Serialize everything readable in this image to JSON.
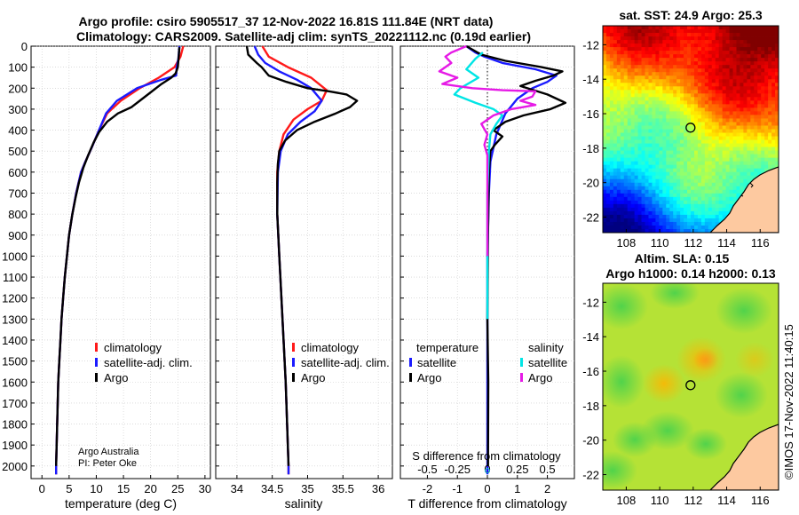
{
  "title": {
    "line1": "Argo profile: csiro 5905517_37 12-Nov-2022 16.81S 111.84E (NRT data)",
    "line2": "Climatology: CARS2009. Satellite-adj clim: synTS_20221112.nc (0.19d earlier)"
  },
  "credit": {
    "line1": "Argo Australia",
    "line2": "PI: Peter Oke"
  },
  "timestamp": "©IMOS 17-Nov-2022 11:40:15",
  "colors": {
    "clim": "#ff1a1a",
    "sat": "#1a1aff",
    "argo": "#000000",
    "satS": "#00e5e5",
    "argoS": "#e61ae6"
  },
  "chart_data": [
    {
      "id": "temperature",
      "type": "line",
      "xlabel": "temperature (deg C)",
      "ylabel": "",
      "xlim": [
        -2,
        31
      ],
      "ylim": [
        2060,
        0
      ],
      "xticks": [
        0,
        5,
        10,
        15,
        20,
        25,
        30
      ],
      "yticks": [
        0,
        100,
        200,
        300,
        400,
        500,
        600,
        700,
        800,
        900,
        1000,
        1100,
        1200,
        1300,
        1400,
        1500,
        1600,
        1700,
        1800,
        1900,
        2000
      ],
      "legend": [
        "climatology",
        "satellite-adj. clim.",
        "Argo"
      ],
      "series": [
        {
          "name": "climatology",
          "color_key": "clim",
          "points": [
            [
              26.0,
              0
            ],
            [
              25.5,
              50
            ],
            [
              24.4,
              100
            ],
            [
              21.5,
              150
            ],
            [
              18.0,
              200
            ],
            [
              14.5,
              260
            ],
            [
              12.0,
              320
            ],
            [
              10.5,
              400
            ],
            [
              9.2,
              480
            ],
            [
              8.0,
              550
            ],
            [
              7.2,
              600
            ],
            [
              6.3,
              700
            ],
            [
              5.6,
              800
            ],
            [
              5.0,
              900
            ],
            [
              4.6,
              1000
            ],
            [
              4.2,
              1100
            ],
            [
              3.9,
              1200
            ],
            [
              3.6,
              1300
            ],
            [
              3.4,
              1400
            ],
            [
              3.2,
              1500
            ],
            [
              3.0,
              1600
            ],
            [
              2.9,
              1700
            ],
            [
              2.8,
              1800
            ],
            [
              2.7,
              1900
            ],
            [
              2.6,
              2000
            ],
            [
              2.6,
              2040
            ]
          ]
        },
        {
          "name": "satellite-adj. clim.",
          "color_key": "sat",
          "points": [
            [
              25.3,
              0
            ],
            [
              25.1,
              60
            ],
            [
              24.8,
              100
            ],
            [
              24.7,
              140
            ],
            [
              22.0,
              160
            ],
            [
              17.5,
              200
            ],
            [
              13.8,
              260
            ],
            [
              11.8,
              320
            ],
            [
              10.5,
              400
            ],
            [
              9.2,
              480
            ],
            [
              8.0,
              550
            ],
            [
              7.2,
              600
            ],
            [
              6.3,
              700
            ],
            [
              5.6,
              800
            ],
            [
              5.0,
              900
            ],
            [
              4.6,
              1000
            ],
            [
              4.2,
              1100
            ],
            [
              3.9,
              1200
            ],
            [
              3.6,
              1300
            ],
            [
              3.4,
              1400
            ],
            [
              3.2,
              1500
            ],
            [
              3.0,
              1600
            ],
            [
              2.9,
              1700
            ],
            [
              2.8,
              1800
            ],
            [
              2.7,
              1900
            ],
            [
              2.6,
              2000
            ],
            [
              2.6,
              2040
            ]
          ]
        },
        {
          "name": "Argo",
          "color_key": "argo",
          "points": [
            [
              25.3,
              5
            ],
            [
              25.2,
              40
            ],
            [
              25.1,
              70
            ],
            [
              25.0,
              100
            ],
            [
              24.6,
              130
            ],
            [
              23.8,
              150
            ],
            [
              22.0,
              180
            ],
            [
              20.0,
              220
            ],
            [
              18.0,
              260
            ],
            [
              16.5,
              290
            ],
            [
              14.0,
              320
            ],
            [
              12.0,
              360
            ],
            [
              10.5,
              410
            ],
            [
              9.5,
              460
            ],
            [
              8.5,
              520
            ],
            [
              7.6,
              580
            ],
            [
              6.8,
              650
            ],
            [
              6.2,
              720
            ],
            [
              5.6,
              800
            ],
            [
              5.0,
              900
            ],
            [
              4.6,
              1000
            ],
            [
              4.2,
              1100
            ],
            [
              3.9,
              1200
            ],
            [
              3.6,
              1300
            ],
            [
              3.4,
              1400
            ],
            [
              3.2,
              1500
            ],
            [
              3.0,
              1600
            ],
            [
              2.9,
              1700
            ],
            [
              2.8,
              1800
            ],
            [
              2.7,
              1900
            ],
            [
              2.6,
              2000
            ]
          ]
        }
      ]
    },
    {
      "id": "salinity",
      "type": "line",
      "xlabel": "salinity",
      "xlim": [
        33.7,
        36.2
      ],
      "ylim": [
        2060,
        0
      ],
      "xticks": [
        34,
        34.5,
        35,
        35.5,
        36
      ],
      "legend": [
        "climatology",
        "satellite-adj. clim.",
        "Argo"
      ],
      "series": [
        {
          "name": "climatology",
          "color_key": "clim",
          "points": [
            [
              34.36,
              0
            ],
            [
              34.45,
              50
            ],
            [
              34.72,
              100
            ],
            [
              35.05,
              150
            ],
            [
              35.27,
              210
            ],
            [
              35.2,
              260
            ],
            [
              35.0,
              300
            ],
            [
              34.8,
              350
            ],
            [
              34.66,
              420
            ],
            [
              34.6,
              500
            ],
            [
              34.57,
              600
            ],
            [
              34.57,
              800
            ],
            [
              34.6,
              1000
            ],
            [
              34.63,
              1200
            ],
            [
              34.66,
              1400
            ],
            [
              34.69,
              1600
            ],
            [
              34.71,
              1800
            ],
            [
              34.73,
              2000
            ],
            [
              34.73,
              2040
            ]
          ]
        },
        {
          "name": "satellite-adj. clim.",
          "color_key": "sat",
          "points": [
            [
              34.25,
              0
            ],
            [
              34.3,
              40
            ],
            [
              34.4,
              80
            ],
            [
              34.6,
              120
            ],
            [
              34.85,
              160
            ],
            [
              35.05,
              200
            ],
            [
              35.2,
              260
            ],
            [
              35.1,
              310
            ],
            [
              34.9,
              360
            ],
            [
              34.72,
              420
            ],
            [
              34.62,
              500
            ],
            [
              34.58,
              600
            ],
            [
              34.57,
              800
            ],
            [
              34.6,
              1000
            ],
            [
              34.63,
              1200
            ],
            [
              34.66,
              1400
            ],
            [
              34.69,
              1600
            ],
            [
              34.71,
              1800
            ],
            [
              34.73,
              2000
            ],
            [
              34.73,
              2040
            ]
          ]
        },
        {
          "name": "Argo",
          "color_key": "argo",
          "points": [
            [
              34.14,
              0
            ],
            [
              34.16,
              40
            ],
            [
              34.28,
              80
            ],
            [
              34.35,
              100
            ],
            [
              34.45,
              140
            ],
            [
              34.7,
              170
            ],
            [
              35.0,
              200
            ],
            [
              35.3,
              215
            ],
            [
              35.55,
              230
            ],
            [
              35.7,
              260
            ],
            [
              35.6,
              290
            ],
            [
              35.4,
              320
            ],
            [
              35.1,
              360
            ],
            [
              34.85,
              400
            ],
            [
              34.68,
              450
            ],
            [
              34.6,
              500
            ],
            [
              34.58,
              560
            ],
            [
              34.57,
              650
            ],
            [
              34.57,
              800
            ],
            [
              34.6,
              1000
            ],
            [
              34.63,
              1200
            ],
            [
              34.66,
              1400
            ],
            [
              34.69,
              1600
            ],
            [
              34.71,
              1800
            ],
            [
              34.73,
              2000
            ]
          ]
        }
      ]
    },
    {
      "id": "differences",
      "type": "line",
      "xlabel": "T difference from climatology",
      "xlabel_top": "S difference from climatology",
      "xlim": [
        -2.9,
        2.9
      ],
      "ylim": [
        2060,
        0
      ],
      "xticks": [
        -2,
        -1,
        0,
        1,
        2
      ],
      "xticks_S": [
        "-0.5",
        "-0.25",
        "0",
        "0.25",
        "0.5"
      ],
      "legend_temp_title": "temperature",
      "legend_sal_title": "salinity",
      "legend_temp": [
        "satellite",
        "Argo"
      ],
      "legend_sal": [
        "satellite",
        "Argo"
      ],
      "series": [
        {
          "name": "T satellite",
          "color_key": "sat",
          "points": [
            [
              -0.7,
              0
            ],
            [
              -0.4,
              30
            ],
            [
              -0.1,
              50
            ],
            [
              0.5,
              80
            ],
            [
              1.6,
              110
            ],
            [
              2.3,
              140
            ],
            [
              2.0,
              170
            ],
            [
              1.5,
              200
            ],
            [
              1.0,
              250
            ],
            [
              0.6,
              320
            ],
            [
              0.3,
              420
            ],
            [
              0.1,
              550
            ],
            [
              0.05,
              700
            ],
            [
              0.0,
              1000
            ],
            [
              0.0,
              1500
            ],
            [
              0.0,
              2000
            ],
            [
              0.0,
              2040
            ]
          ]
        },
        {
          "name": "T Argo",
          "color_key": "argo",
          "points": [
            [
              -0.7,
              0
            ],
            [
              -0.2,
              40
            ],
            [
              0.6,
              70
            ],
            [
              1.8,
              100
            ],
            [
              2.5,
              120
            ],
            [
              2.2,
              140
            ],
            [
              1.6,
              165
            ],
            [
              1.1,
              190
            ],
            [
              2.0,
              230
            ],
            [
              2.6,
              270
            ],
            [
              2.1,
              300
            ],
            [
              1.2,
              330
            ],
            [
              0.6,
              360
            ],
            [
              0.2,
              400
            ],
            [
              0.5,
              430
            ],
            [
              0.25,
              470
            ],
            [
              0.1,
              500
            ],
            [
              0.05,
              600
            ],
            [
              0.02,
              900
            ],
            [
              0.0,
              1300
            ],
            [
              0.03,
              1600
            ],
            [
              0.02,
              2000
            ]
          ]
        },
        {
          "name": "S satellite",
          "color_key": "satS",
          "points": [
            [
              -0.15,
              30
            ],
            [
              -0.4,
              60
            ],
            [
              -0.7,
              110
            ],
            [
              -0.3,
              150
            ],
            [
              -0.9,
              200
            ],
            [
              -1.1,
              230
            ],
            [
              -0.4,
              270
            ],
            [
              0.2,
              300
            ],
            [
              0.5,
              330
            ],
            [
              0.3,
              370
            ],
            [
              0.1,
              420
            ],
            [
              0.05,
              500
            ],
            [
              0.0,
              700
            ],
            [
              0.0,
              1200
            ],
            [
              0.0,
              1300
            ]
          ]
        },
        {
          "name": "S Argo",
          "color_key": "argoS",
          "points": [
            [
              -0.7,
              0
            ],
            [
              -1.2,
              30
            ],
            [
              -1.4,
              50
            ],
            [
              -1.2,
              80
            ],
            [
              -1.6,
              120
            ],
            [
              -1.0,
              150
            ],
            [
              -1.5,
              180
            ],
            [
              -0.5,
              200
            ],
            [
              0.5,
              210
            ],
            [
              1.6,
              215
            ],
            [
              1.5,
              240
            ],
            [
              1.1,
              260
            ],
            [
              1.6,
              280
            ],
            [
              0.8,
              300
            ],
            [
              0.2,
              330
            ],
            [
              -0.2,
              370
            ],
            [
              0.0,
              420
            ],
            [
              -0.1,
              470
            ],
            [
              0.0,
              520
            ],
            [
              0.0,
              700
            ],
            [
              0.0,
              1000
            ]
          ]
        }
      ]
    },
    {
      "id": "sst-map",
      "type": "heatmap",
      "title": "sat. SST: 24.9 Argo: 25.3",
      "xlim": [
        106.6,
        117.1
      ],
      "ylim": [
        -22.9,
        -10.9
      ],
      "xticks": [
        108,
        110,
        112,
        114,
        116
      ],
      "yticks": [
        -12,
        -14,
        -16,
        -18,
        -20,
        -22
      ],
      "marker": {
        "lon": 111.84,
        "lat": -16.81
      }
    },
    {
      "id": "sla-map",
      "type": "heatmap",
      "title_line1": "Altim. SLA: 0.15",
      "title_line2": "Argo h1000: 0.14 h2000: 0.13",
      "xlim": [
        106.6,
        117.1
      ],
      "ylim": [
        -22.9,
        -10.9
      ],
      "xticks": [
        108,
        110,
        112,
        114,
        116
      ],
      "yticks": [
        -12,
        -14,
        -16,
        -18,
        -20,
        -22
      ],
      "marker": {
        "lon": 111.84,
        "lat": -16.81
      }
    }
  ]
}
